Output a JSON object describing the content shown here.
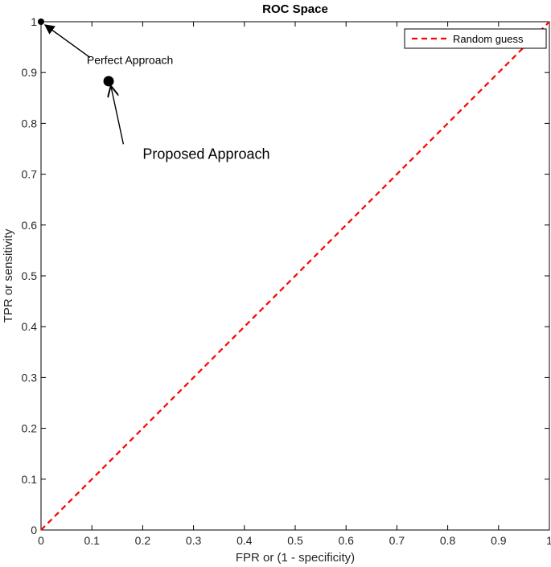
{
  "chart_data": {
    "type": "line",
    "title": "ROC Space",
    "xlabel": "FPR or (1 - specificity)",
    "ylabel": "TPR or sensitivity",
    "xlim": [
      0,
      1
    ],
    "ylim": [
      0,
      1
    ],
    "x_ticks": [
      "0",
      "0.1",
      "0.2",
      "0.3",
      "0.4",
      "0.5",
      "0.6",
      "0.7",
      "0.8",
      "0.9",
      "1"
    ],
    "y_ticks": [
      "0",
      "0.1",
      "0.2",
      "0.3",
      "0.4",
      "0.5",
      "0.6",
      "0.7",
      "0.8",
      "0.9",
      "1"
    ],
    "grid": false,
    "legend": {
      "placement": "top-right",
      "entries": [
        "Random guess"
      ]
    },
    "series": [
      {
        "name": "Random guess",
        "x": [
          0,
          1
        ],
        "y": [
          0,
          1
        ],
        "style": "dashed",
        "color": "#ff0000"
      }
    ],
    "points": [
      {
        "label": "Perfect Approach",
        "x": 0.0,
        "y": 1.0
      },
      {
        "label": "Proposed Approach",
        "x": 0.133,
        "y": 0.883
      }
    ],
    "annotations": [
      {
        "text": "Perfect Approach",
        "x": 0.09,
        "y": 0.925
      },
      {
        "text": "Proposed Approach",
        "x": 0.2,
        "y": 0.74
      }
    ]
  }
}
